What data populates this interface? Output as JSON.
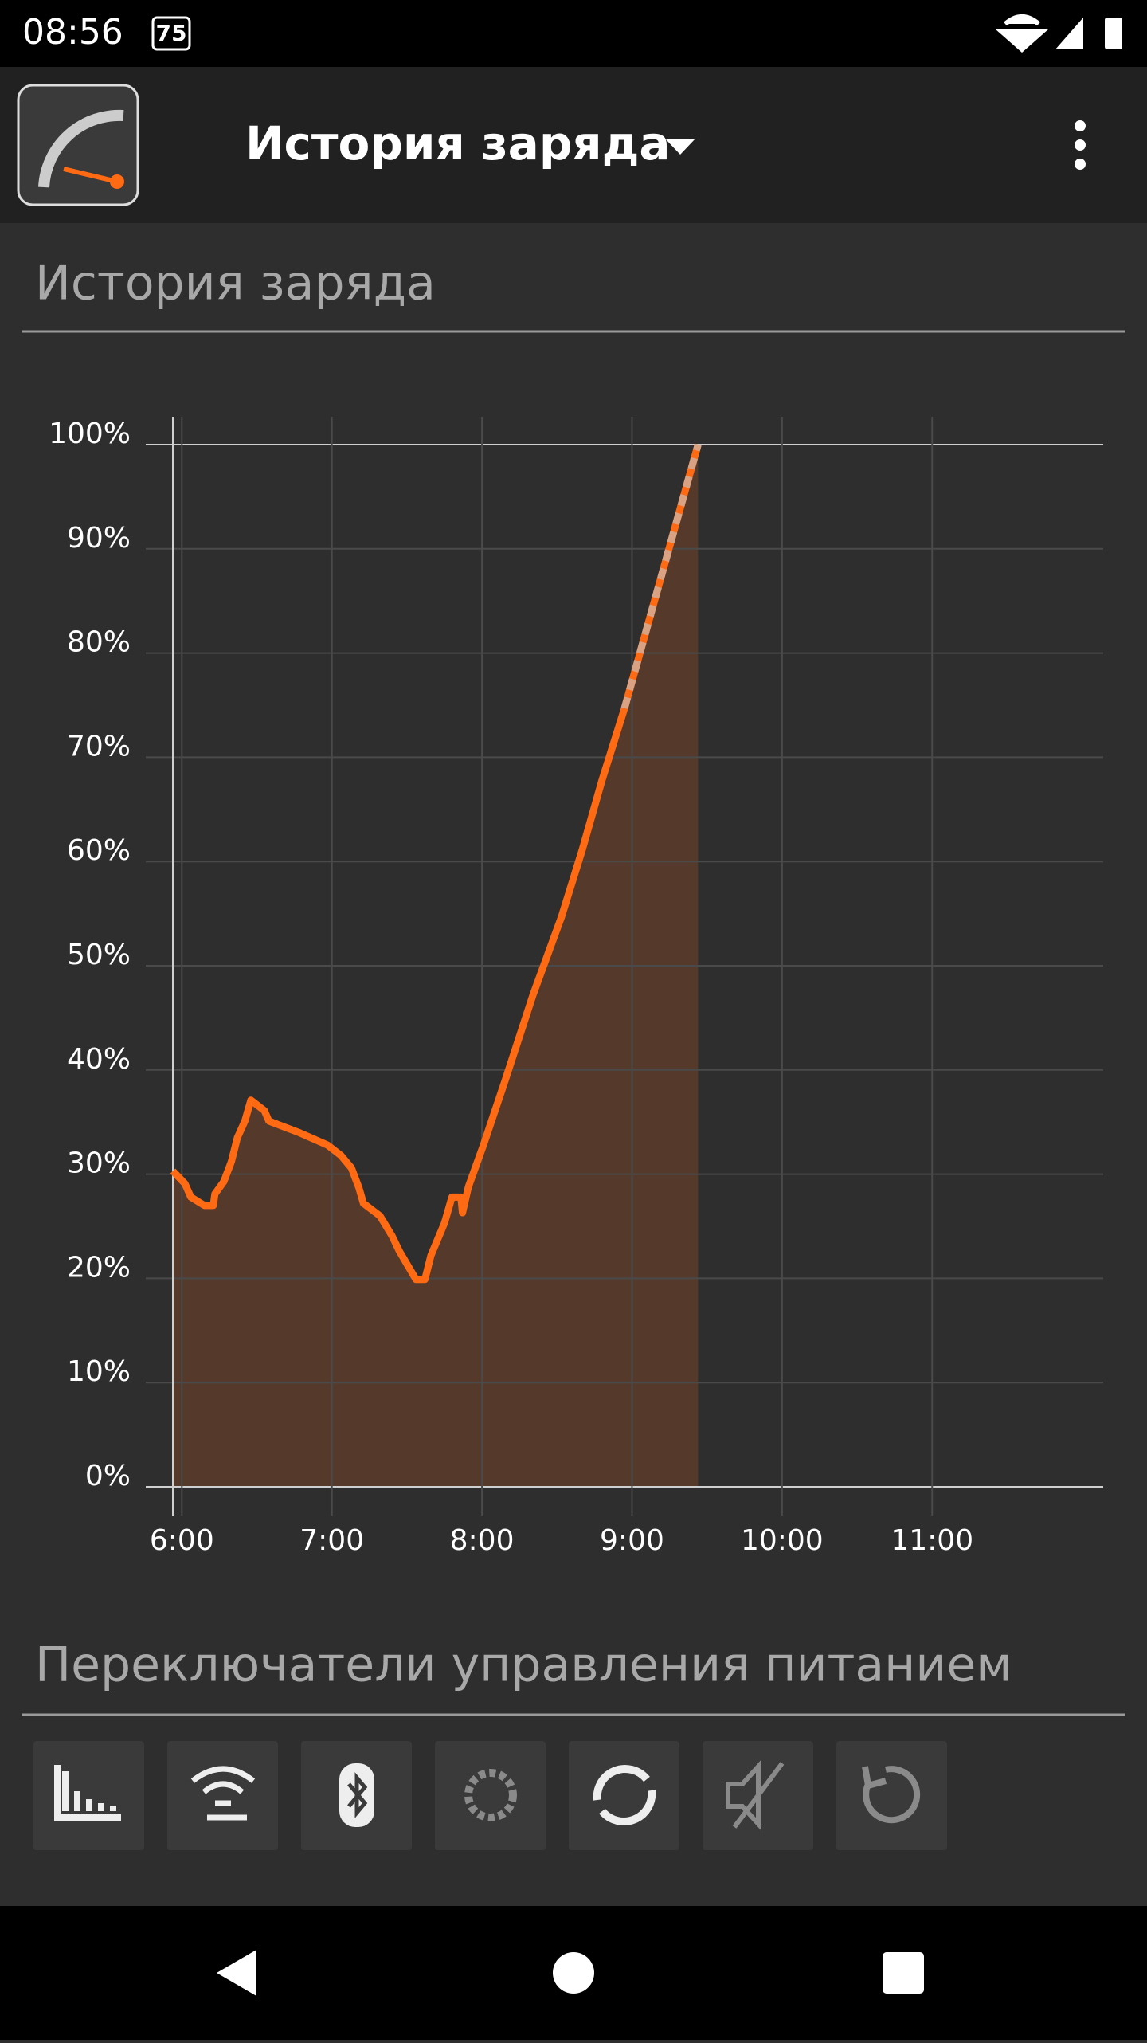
{
  "status_bar": {
    "time": "08:56",
    "badge": "75"
  },
  "app_bar": {
    "title": "История заряда"
  },
  "sections": [
    "История заряда",
    "Переключатели управления питанием"
  ],
  "chart_data": {
    "type": "line",
    "xlim": [
      5.94,
      12.14
    ],
    "xticks": [
      {
        "value": 6,
        "label": "6:00"
      },
      {
        "value": 7,
        "label": "7:00"
      },
      {
        "value": 8,
        "label": "8:00"
      },
      {
        "value": 9,
        "label": "9:00"
      },
      {
        "value": 10,
        "label": "10:00"
      },
      {
        "value": 11,
        "label": "11:00"
      }
    ],
    "ylim": [
      0,
      100
    ],
    "yticks": [
      {
        "value": 0,
        "label": "0%"
      },
      {
        "value": 10,
        "label": "10%"
      },
      {
        "value": 20,
        "label": "20%"
      },
      {
        "value": 30,
        "label": "30%"
      },
      {
        "value": 40,
        "label": "40%"
      },
      {
        "value": 50,
        "label": "50%"
      },
      {
        "value": 60,
        "label": "60%"
      },
      {
        "value": 70,
        "label": "70%"
      },
      {
        "value": 80,
        "label": "80%"
      },
      {
        "value": 90,
        "label": "90%"
      },
      {
        "value": 100,
        "label": "100%"
      }
    ],
    "grid": true,
    "fill_color": "#553a2b",
    "series": [
      {
        "color": "#ff6a13",
        "dashed": false,
        "x": [
          5.94,
          6.02,
          6.06,
          6.15,
          6.21,
          6.22,
          6.28,
          6.33,
          6.37,
          6.42,
          6.46,
          6.55,
          6.58,
          6.78,
          6.97,
          7.06,
          7.13,
          7.18,
          7.21,
          7.32,
          7.4,
          7.45,
          7.56,
          7.62,
          7.66,
          7.75,
          7.8,
          7.86,
          7.87,
          7.91,
          8.01,
          8.15,
          8.34,
          8.53,
          8.67,
          8.8,
          8.95
        ],
        "values": [
          30.3,
          29.1,
          27.8,
          27,
          27,
          28.1,
          29.3,
          31.2,
          33.5,
          35.1,
          37.1,
          36.1,
          35.1,
          34,
          32.8,
          31.8,
          30.6,
          28.7,
          27.2,
          26,
          24.1,
          22.6,
          19.9,
          19.9,
          22.2,
          25.3,
          27.8,
          27.8,
          26.3,
          28.8,
          32.8,
          38.8,
          47.2,
          54.7,
          61.2,
          67.8,
          74.7
        ]
      },
      {
        "color": "#d9a283",
        "dashed": true,
        "x": [
          8.95,
          9.44
        ],
        "values": [
          74.7,
          100
        ]
      }
    ]
  }
}
